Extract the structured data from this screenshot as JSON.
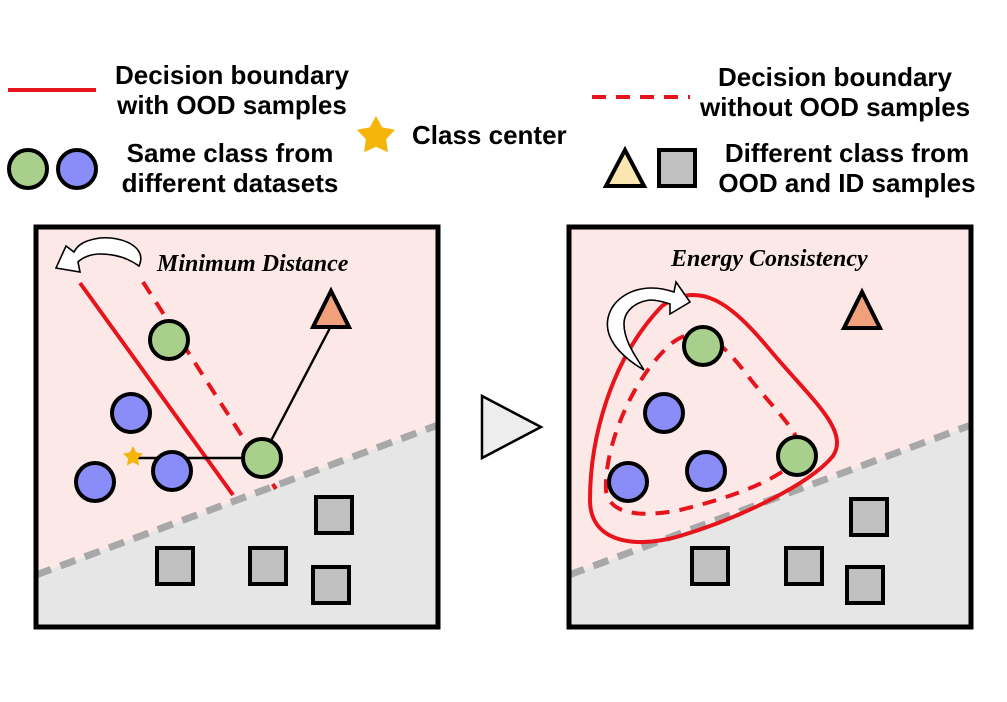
{
  "legend": {
    "solid_line_line1": "Decision boundary",
    "solid_line_line2": "with OOD samples",
    "dashed_line_line1": "Decision boundary",
    "dashed_line_line2": "without OOD samples",
    "class_center": "Class center",
    "same_class_line1": "Same class from",
    "same_class_line2": "different datasets",
    "diff_class_line1": "Different class from",
    "diff_class_line2": "OOD and ID samples"
  },
  "panels": {
    "left_annotation": "Minimum Distance",
    "right_annotation": "Energy Consistency"
  },
  "colors": {
    "boundary_red": "#e8141c",
    "ood_region": "#fde8e8",
    "id_region": "#e6e6e6",
    "green_circle": "#a9cf8c",
    "blue_circle": "#8a8cf7",
    "star": "#f5b50a",
    "triangle_legend": "#fbe5b0",
    "triangle_panel": "#f0a07a",
    "square": "#c0c0c0",
    "separator_dash": "#a8a8a8"
  }
}
